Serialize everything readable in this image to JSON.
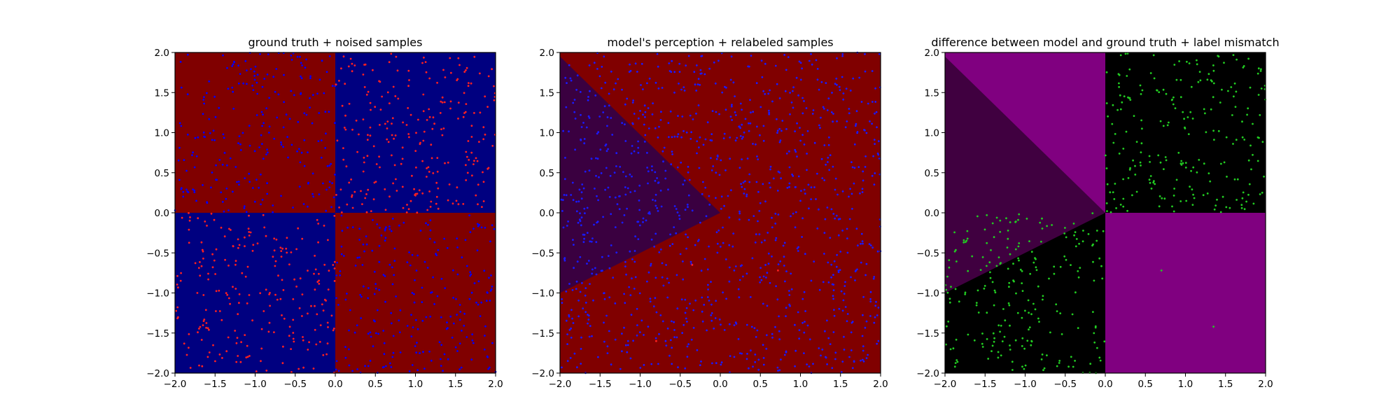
{
  "chart_data": [
    {
      "type": "scatter",
      "title": "ground truth + noised samples",
      "xlim": [
        -2.0,
        2.0
      ],
      "ylim": [
        -2.0,
        2.0
      ],
      "xticks": [
        "−2.0",
        "−1.5",
        "−1.0",
        "−0.5",
        "0.0",
        "0.5",
        "1.0",
        "1.5",
        "2.0"
      ],
      "yticks": [
        "−2.0",
        "−1.5",
        "−1.0",
        "−0.5",
        "0.0",
        "0.5",
        "1.0",
        "1.5",
        "2.0"
      ],
      "grid": false,
      "background_regions": [
        {
          "polygon": [
            [
              -2,
              0
            ],
            [
              0,
              0
            ],
            [
              0,
              2
            ],
            [
              -2,
              2
            ]
          ],
          "color": "#800000"
        },
        {
          "polygon": [
            [
              0,
              0
            ],
            [
              2,
              0
            ],
            [
              2,
              2
            ],
            [
              0,
              2
            ]
          ],
          "color": "#000080"
        },
        {
          "polygon": [
            [
              -2,
              -2
            ],
            [
              0,
              -2
            ],
            [
              0,
              0
            ],
            [
              -2,
              0
            ]
          ],
          "color": "#000080"
        },
        {
          "polygon": [
            [
              0,
              -2
            ],
            [
              2,
              -2
            ],
            [
              2,
              0
            ],
            [
              0,
              0
            ]
          ],
          "color": "#800000"
        }
      ],
      "series": [
        {
          "color": "#0000ff",
          "region": "x*y < 0 (upper-left, lower-right)",
          "approx_count": 480
        },
        {
          "color": "#ff2020",
          "region": "x*y > 0 (upper-right, lower-left)",
          "approx_count": 480
        }
      ]
    },
    {
      "type": "scatter",
      "title": "model's perception + relabeled samples",
      "xlim": [
        -2.0,
        2.0
      ],
      "ylim": [
        -2.0,
        2.0
      ],
      "xticks": [
        "−2.0",
        "−1.5",
        "−1.0",
        "−0.5",
        "0.0",
        "0.5",
        "1.0",
        "1.5",
        "2.0"
      ],
      "yticks": [
        "−2.0",
        "−1.5",
        "−1.0",
        "−0.5",
        "0.0",
        "0.5",
        "1.0",
        "1.5",
        "2.0"
      ],
      "grid": false,
      "background_regions": [
        {
          "polygon": [
            [
              -2,
              -2
            ],
            [
              2,
              -2
            ],
            [
              2,
              2
            ],
            [
              -2,
              2
            ]
          ],
          "color": "#800000"
        },
        {
          "polygon": [
            [
              -2,
              1.95
            ],
            [
              0,
              0
            ],
            [
              -2,
              -1.0
            ]
          ],
          "color": "#3a0040"
        }
      ],
      "series": [
        {
          "color": "#1a1aff",
          "region": "whole plane",
          "approx_count": 1100
        },
        {
          "color": "#ff2020",
          "points": [
            [
              -0.35,
              -0.65
            ],
            [
              0.72,
              -0.72
            ],
            [
              -0.8,
              -1.6
            ]
          ]
        }
      ]
    },
    {
      "type": "scatter",
      "title": "difference between model and ground truth + label mismatch",
      "xlim": [
        -2.0,
        2.0
      ],
      "ylim": [
        -2.0,
        2.0
      ],
      "xticks": [
        "−2.0",
        "−1.5",
        "−1.0",
        "−0.5",
        "0.0",
        "0.5",
        "1.0",
        "1.5",
        "2.0"
      ],
      "yticks": [
        "−2.0",
        "−1.5",
        "−1.0",
        "−0.5",
        "0.0",
        "0.5",
        "1.0",
        "1.5",
        "2.0"
      ],
      "grid": false,
      "background_regions": [
        {
          "polygon": [
            [
              -2,
              -2
            ],
            [
              2,
              -2
            ],
            [
              2,
              2
            ],
            [
              -2,
              2
            ]
          ],
          "color": "#000000"
        },
        {
          "polygon": [
            [
              -2,
              0
            ],
            [
              0,
              0
            ],
            [
              0,
              2
            ],
            [
              -2,
              2
            ]
          ],
          "color": "#800080"
        },
        {
          "polygon": [
            [
              0,
              -2
            ],
            [
              2,
              -2
            ],
            [
              2,
              0
            ],
            [
              0,
              0
            ]
          ],
          "color": "#800080"
        },
        {
          "polygon": [
            [
              -2,
              1.95
            ],
            [
              0,
              0
            ],
            [
              -2,
              0
            ]
          ],
          "color": "#400040"
        },
        {
          "polygon": [
            [
              -2,
              0
            ],
            [
              0,
              0
            ],
            [
              -2,
              -1.0
            ]
          ],
          "color": "#400040"
        }
      ],
      "series": [
        {
          "color": "#22cc22",
          "region": "x*y > 0 (upper-right, lower-left)",
          "approx_count": 460
        },
        {
          "color": "#22cc22",
          "points": [
            [
              0.7,
              -0.72
            ],
            [
              1.35,
              -1.42
            ]
          ]
        }
      ]
    }
  ]
}
